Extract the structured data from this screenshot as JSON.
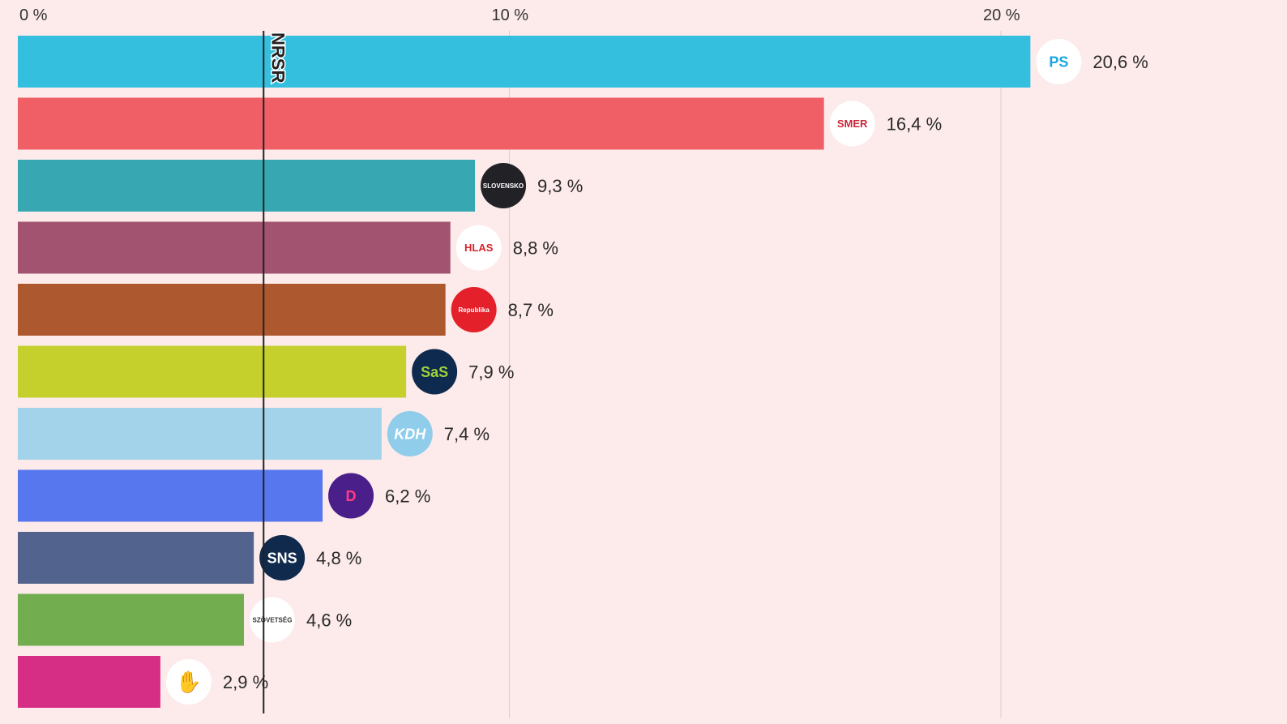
{
  "chart_data": {
    "type": "bar",
    "orientation": "horizontal",
    "xlim": [
      0,
      21
    ],
    "x_ticks": [
      0,
      10,
      20
    ],
    "x_tick_labels": [
      "0 %",
      "10 %",
      "20 %"
    ],
    "grid": true,
    "threshold": {
      "value": 5,
      "label": "NRSR"
    },
    "value_suffix": " %",
    "bars": [
      {
        "value": 20.6,
        "label": "20,6 %",
        "color": "#35bfdf",
        "logo": {
          "text": "PS",
          "bg": "#ffffff",
          "fg": "#1aa6e0"
        }
      },
      {
        "value": 16.4,
        "label": "16,4 %",
        "color": "#f05f66",
        "logo": {
          "text": "SMER",
          "bg": "#ffffff",
          "fg": "#c8283a"
        }
      },
      {
        "value": 9.3,
        "label": "9,3 %",
        "color": "#37a8b2",
        "logo": {
          "text": "SLOVENSKO",
          "bg": "#222226",
          "fg": "#ffffff"
        }
      },
      {
        "value": 8.8,
        "label": "8,8 %",
        "color": "#a2536f",
        "logo": {
          "text": "HLAS",
          "bg": "#ffffff",
          "fg": "#d8232a"
        }
      },
      {
        "value": 8.7,
        "label": "8,7 %",
        "color": "#ad582f",
        "logo": {
          "text": "Republika",
          "bg": "#e4202a",
          "fg": "#ffffff"
        }
      },
      {
        "value": 7.9,
        "label": "7,9 %",
        "color": "#c5d02d",
        "logo": {
          "text": "SaS",
          "bg": "#0e2a4f",
          "fg": "#9fd13a"
        }
      },
      {
        "value": 7.4,
        "label": "7,4 %",
        "color": "#a3d3ea",
        "logo": {
          "text": "KDH",
          "bg": "#8fcdeb",
          "fg": "#ffffff"
        }
      },
      {
        "value": 6.2,
        "label": "6,2 %",
        "color": "#5677ee",
        "logo": {
          "text": "D",
          "bg": "#4a1f8a",
          "fg": "#ff3d7f"
        }
      },
      {
        "value": 4.8,
        "label": "4,8 %",
        "color": "#52648e",
        "logo": {
          "text": "SNS",
          "bg": "#0f2a4d",
          "fg": "#ffffff"
        }
      },
      {
        "value": 4.6,
        "label": "4,6 %",
        "color": "#72ad4f",
        "logo": {
          "text": "SZÖVETSÉG",
          "bg": "#ffffff",
          "fg": "#333333"
        }
      },
      {
        "value": 2.9,
        "label": "2,9 %",
        "color": "#d62e85",
        "logo": {
          "text": "",
          "bg": "#ffffff",
          "fg": "#d8232a"
        }
      }
    ]
  }
}
